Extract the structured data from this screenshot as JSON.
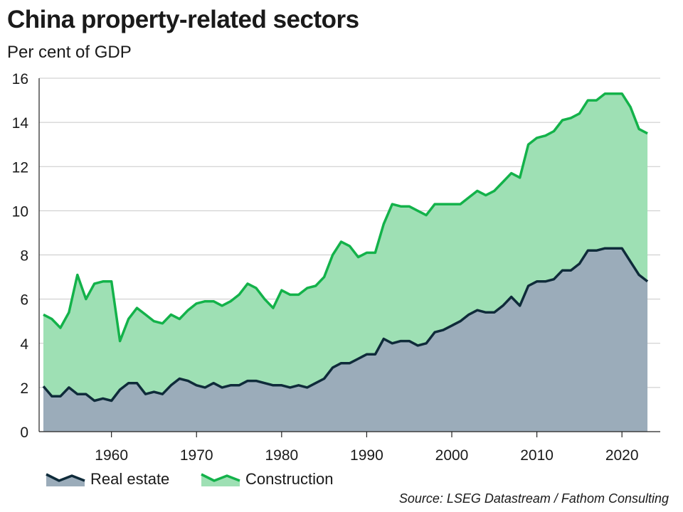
{
  "title": "China property-related sectors",
  "subtitle": "Per cent of GDP",
  "source": "Source: LSEG Datastream / Fathom Consulting",
  "colors": {
    "real_estate_fill": "#9bacba",
    "real_estate_line": "#0f2b3a",
    "construction_fill": "#9ee0b4",
    "construction_line": "#13b24a",
    "grid": "#c8c8c8",
    "axis": "#222222"
  },
  "chart_data": {
    "type": "area",
    "stacked": true,
    "title": "China property-related sectors",
    "ylabel": "Per cent of GDP",
    "xlabel": "",
    "xlim": [
      1951.5,
      2024.5
    ],
    "ylim": [
      0,
      16
    ],
    "yticks": [
      0,
      2,
      4,
      6,
      8,
      10,
      12,
      14,
      16
    ],
    "xticks": [
      1960,
      1970,
      1980,
      1990,
      2000,
      2010,
      2020
    ],
    "grid": true,
    "legend_position": "bottom-left",
    "x": [
      1952,
      1953,
      1954,
      1955,
      1956,
      1957,
      1958,
      1959,
      1960,
      1961,
      1962,
      1963,
      1964,
      1965,
      1966,
      1967,
      1968,
      1969,
      1970,
      1971,
      1972,
      1973,
      1974,
      1975,
      1976,
      1977,
      1978,
      1979,
      1980,
      1981,
      1982,
      1983,
      1984,
      1985,
      1986,
      1987,
      1988,
      1989,
      1990,
      1991,
      1992,
      1993,
      1994,
      1995,
      1996,
      1997,
      1998,
      1999,
      2000,
      2001,
      2002,
      2003,
      2004,
      2005,
      2006,
      2007,
      2008,
      2009,
      2010,
      2011,
      2012,
      2013,
      2014,
      2015,
      2016,
      2017,
      2018,
      2019,
      2020,
      2021,
      2022,
      2023
    ],
    "series": [
      {
        "name": "Real estate",
        "values": [
          2.05,
          1.6,
          1.6,
          2.0,
          1.7,
          1.7,
          1.4,
          1.5,
          1.4,
          1.9,
          2.2,
          2.2,
          1.7,
          1.8,
          1.7,
          2.1,
          2.4,
          2.3,
          2.1,
          2.0,
          2.2,
          2.0,
          2.1,
          2.1,
          2.3,
          2.3,
          2.2,
          2.1,
          2.1,
          2.0,
          2.1,
          2.0,
          2.2,
          2.4,
          2.9,
          3.1,
          3.1,
          3.3,
          3.5,
          3.5,
          4.2,
          4.0,
          4.1,
          4.1,
          3.9,
          4.0,
          4.5,
          4.6,
          4.8,
          5.0,
          5.3,
          5.5,
          5.4,
          5.4,
          5.7,
          6.1,
          5.7,
          6.6,
          6.8,
          6.8,
          6.9,
          7.3,
          7.3,
          7.6,
          8.2,
          8.2,
          8.3,
          8.3,
          8.3,
          7.7,
          7.1,
          6.8
        ]
      },
      {
        "name": "Construction",
        "values": [
          3.25,
          3.5,
          3.1,
          3.4,
          5.4,
          4.3,
          5.3,
          5.3,
          5.4,
          2.2,
          2.9,
          3.4,
          3.6,
          3.2,
          3.2,
          3.2,
          2.7,
          3.2,
          3.7,
          3.9,
          3.7,
          3.7,
          3.8,
          4.1,
          4.4,
          4.2,
          3.8,
          3.5,
          4.3,
          4.2,
          4.1,
          4.5,
          4.4,
          4.6,
          5.1,
          5.5,
          5.3,
          4.6,
          4.6,
          4.6,
          5.2,
          6.3,
          6.1,
          6.1,
          6.1,
          5.8,
          5.8,
          5.7,
          5.5,
          5.3,
          5.3,
          5.4,
          5.3,
          5.5,
          5.6,
          5.6,
          5.8,
          6.4,
          6.5,
          6.6,
          6.7,
          6.8,
          6.9,
          6.8,
          6.8,
          6.8,
          7.0,
          7.0,
          7.0,
          7.0,
          6.6,
          6.7
        ]
      }
    ]
  }
}
